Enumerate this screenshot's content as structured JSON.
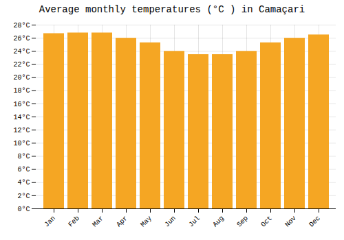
{
  "chart_data": {
    "type": "bar",
    "title": "Average monthly temperatures (°C ) in Camaçari",
    "categories": [
      "Jan",
      "Feb",
      "Mar",
      "Apr",
      "May",
      "Jun",
      "Jul",
      "Aug",
      "Sep",
      "Oct",
      "Nov",
      "Dec"
    ],
    "values": [
      26.7,
      26.8,
      26.8,
      26.0,
      25.3,
      24.0,
      23.5,
      23.5,
      24.0,
      25.3,
      26.0,
      26.5
    ],
    "color": "#F5A623",
    "ylim": [
      0,
      28
    ],
    "yticks": [
      {
        "value": 0,
        "label": "0°C"
      },
      {
        "value": 2,
        "label": "2°C"
      },
      {
        "value": 4,
        "label": "4°C"
      },
      {
        "value": 6,
        "label": "6°C"
      },
      {
        "value": 8,
        "label": "8°C"
      },
      {
        "value": 10,
        "label": "10°C"
      },
      {
        "value": 12,
        "label": "12°C"
      },
      {
        "value": 14,
        "label": "14°C"
      },
      {
        "value": 16,
        "label": "16°C"
      },
      {
        "value": 18,
        "label": "18°C"
      },
      {
        "value": 20,
        "label": "20°C"
      },
      {
        "value": 22,
        "label": "22°C"
      },
      {
        "value": 24,
        "label": "24°C"
      },
      {
        "value": 26,
        "label": "26°C"
      },
      {
        "value": 28,
        "label": "28°C"
      }
    ],
    "grid": true
  }
}
